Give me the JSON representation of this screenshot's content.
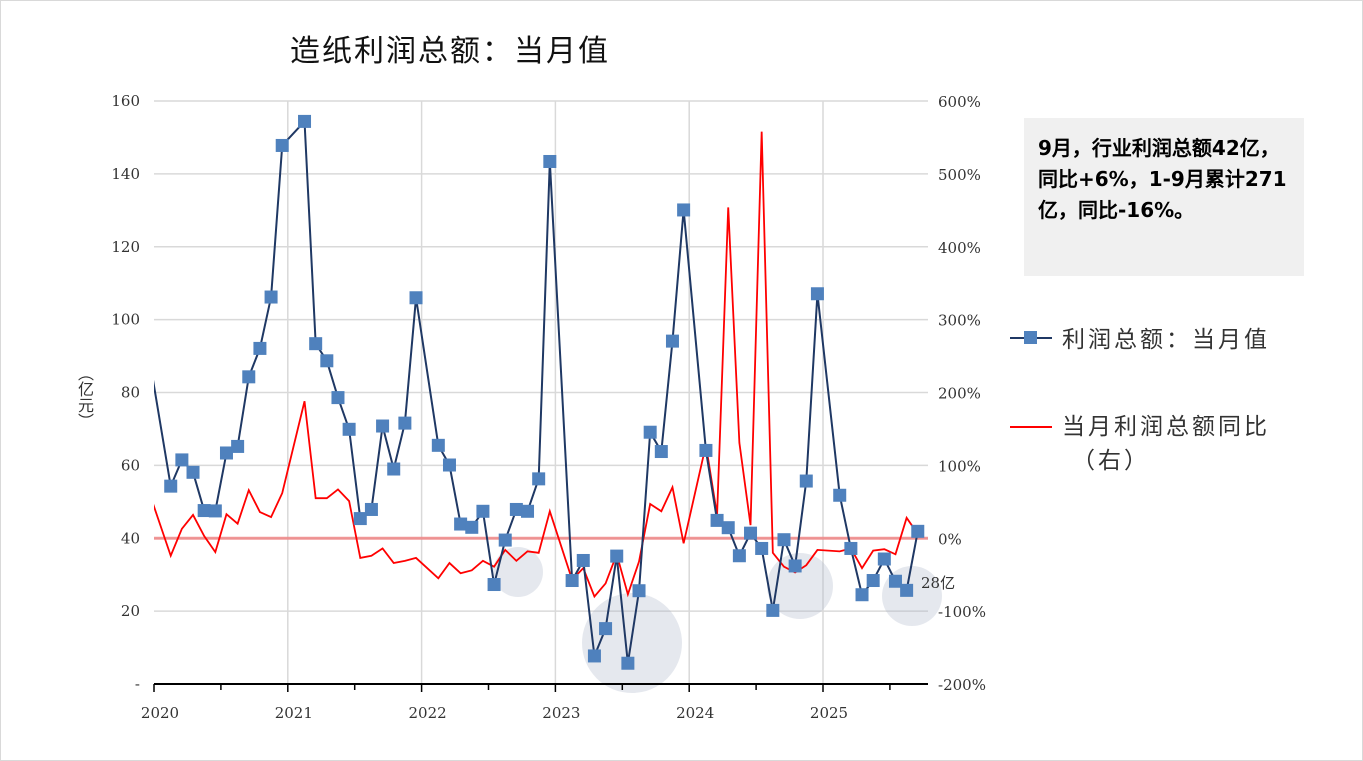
{
  "title": "造纸利润总额：当月值",
  "note": "9月，行业利润总额42亿，同比+6%，1-9月累计271亿，同比-16%。",
  "chart_data": {
    "type": "line",
    "title": "造纸利润总额：当月值",
    "ylabel": "（亿元）",
    "ylim": [
      0,
      160
    ],
    "y_ticks": [
      "-",
      "20",
      "40",
      "60",
      "80",
      "100",
      "120",
      "140",
      "160"
    ],
    "y2lim": [
      -200,
      600
    ],
    "y2_ticks": [
      "-200%",
      "-100%",
      "0%",
      "100%",
      "200%",
      "300%",
      "400%",
      "500%",
      "600%"
    ],
    "x_ticks": [
      "2020",
      "2021",
      "2022",
      "2023",
      "2024",
      "2025"
    ],
    "grid": true,
    "legend": "right",
    "annotation": "28亿",
    "x": [
      "2019-12",
      "2020-02",
      "2020-03",
      "2020-04",
      "2020-05",
      "2020-06",
      "2020-07",
      "2020-08",
      "2020-09",
      "2020-10",
      "2020-11",
      "2020-12",
      "2021-02",
      "2021-03",
      "2021-04",
      "2021-05",
      "2021-06",
      "2021-07",
      "2021-08",
      "2021-09",
      "2021-10",
      "2021-11",
      "2021-12",
      "2022-02",
      "2022-03",
      "2022-04",
      "2022-05",
      "2022-06",
      "2022-07",
      "2022-08",
      "2022-09",
      "2022-10",
      "2022-11",
      "2022-12",
      "2023-02",
      "2023-03",
      "2023-04",
      "2023-05",
      "2023-06",
      "2023-07",
      "2023-08",
      "2023-09",
      "2023-10",
      "2023-11",
      "2023-12",
      "2024-02",
      "2024-03",
      "2024-04",
      "2024-05",
      "2024-06",
      "2024-07",
      "2024-08",
      "2024-09",
      "2024-10",
      "2024-11",
      "2024-12",
      "2025-02",
      "2025-03",
      "2025-04",
      "2025-05",
      "2025-06",
      "2025-07",
      "2025-08",
      "2025-09"
    ],
    "series": [
      {
        "name": "利润总额：当月值",
        "axis": "left",
        "color": "#1f3864",
        "marker_color": "#4f81bd",
        "values": [
          91,
          54.3,
          61.5,
          58.1,
          47.6,
          47.5,
          63.4,
          65.2,
          84.3,
          92.1,
          106.2,
          147.8,
          154.4,
          93.4,
          88.7,
          78.6,
          69.9,
          45.4,
          47.9,
          70.8,
          59.0,
          71.6,
          106.0,
          65.5,
          60.1,
          43.9,
          43.0,
          47.4,
          27.3,
          39.5,
          47.9,
          47.4,
          56.3,
          143.4,
          28.4,
          33.9,
          7.7,
          15.2,
          35.1,
          5.7,
          25.6,
          69.1,
          63.8,
          94.1,
          130.1,
          64.1,
          44.9,
          42.9,
          35.2,
          41.4,
          37.2,
          20.2,
          39.6,
          32.4,
          55.7,
          107.1,
          51.8,
          37.2,
          24.5,
          28.4,
          34.3,
          28.2,
          25.7,
          41.9
        ]
      },
      {
        "name": "当月利润总额同比（右）",
        "axis": "right",
        "color": "#ff0000",
        "values": [
          66,
          -24,
          13,
          32,
          3,
          -19,
          33,
          20,
          66,
          36,
          29,
          62,
          188,
          55,
          55,
          67,
          51,
          -27,
          -24,
          -14,
          -34,
          -31,
          -27,
          -55,
          -34,
          -48,
          -44,
          -31,
          -39,
          -16,
          -31,
          -18,
          -20,
          37,
          -57,
          -41,
          -80,
          -62,
          -22,
          -77,
          -32,
          47,
          37,
          70,
          -7,
          128,
          32,
          454,
          131,
          18,
          558,
          -20,
          -39,
          -47,
          -37,
          -16,
          -18,
          -14,
          -41,
          -17,
          -15,
          -22,
          28,
          6
        ]
      }
    ]
  },
  "legend": {
    "item1": "利润总额：当月值",
    "item2_line1": "当月利润总额同比",
    "item2_line2": "（右）"
  }
}
